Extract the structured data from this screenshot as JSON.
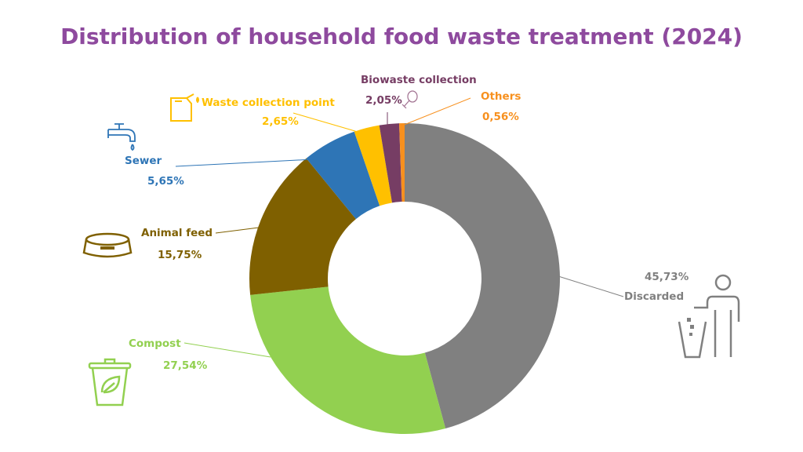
{
  "chart_data": {
    "type": "pie",
    "donut": true,
    "title": "Distribution of household food waste treatment (2024)",
    "start": "top, clockwise",
    "categories": [
      "Discarded",
      "Compost",
      "Animal feed",
      "Sewer",
      "Waste collection point",
      "Biowaste collection",
      "Others"
    ],
    "values": [
      45.73,
      27.54,
      15.75,
      5.65,
      2.65,
      2.05,
      0.56
    ],
    "value_labels": [
      "45,73%",
      "27,54%",
      "15,75%",
      "5,65%",
      "2,65%",
      "2,05%",
      "0,56%"
    ],
    "colors": [
      "#808080",
      "#92d050",
      "#7f6000",
      "#2e75b6",
      "#ffc000",
      "#763d64",
      "#f7901e"
    ],
    "icons": [
      "person-trash-icon",
      "compost-bin-icon",
      "pet-bowl-icon",
      "faucet-icon",
      "jerrycan-icon",
      "chicken-leg-icon",
      ""
    ]
  }
}
